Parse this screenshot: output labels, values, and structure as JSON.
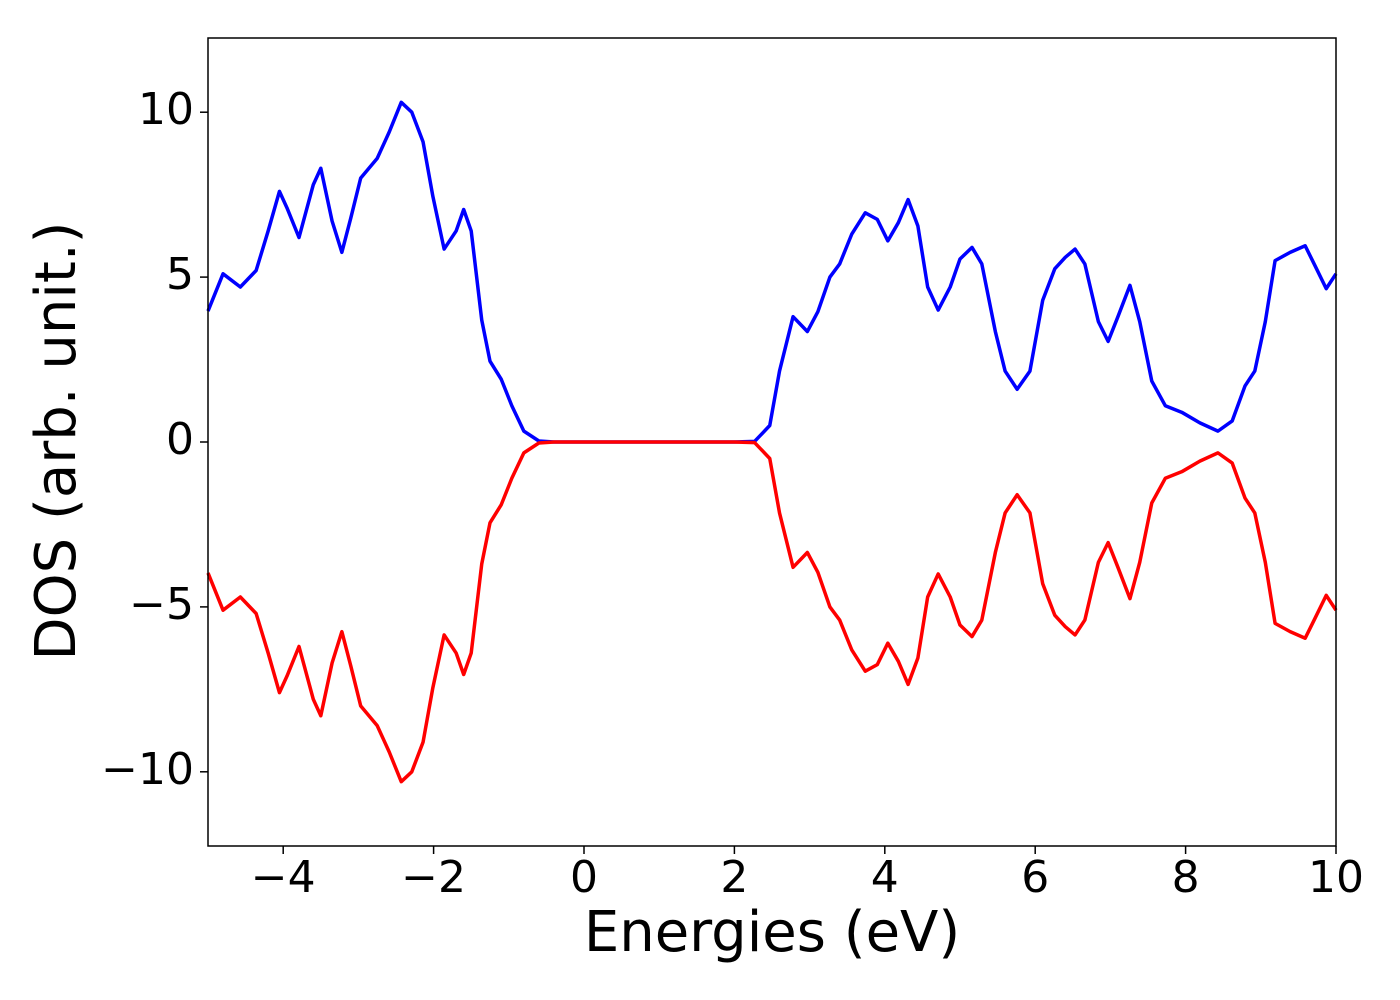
{
  "chart_data": {
    "type": "line",
    "xlabel": "Energies (eV)",
    "ylabel": "DOS (arb. unit.)",
    "xlim": [
      -5,
      10
    ],
    "ylim": [
      -12.25,
      12.25
    ],
    "xticks": [
      {
        "value": -4,
        "label": "−4"
      },
      {
        "value": -2,
        "label": "−2"
      },
      0,
      2,
      4,
      6,
      8,
      10
    ],
    "yticks": [
      {
        "value": -10,
        "label": "−10"
      },
      {
        "value": -5,
        "label": "−5"
      },
      0,
      5,
      10
    ],
    "grid": false,
    "x": [
      -5,
      -4.8,
      -4.57,
      -4.36,
      -4.2,
      -4.05,
      -3.95,
      -3.79,
      -3.6,
      -3.5,
      -3.35,
      -3.22,
      -3.1,
      -2.97,
      -2.75,
      -2.59,
      -2.43,
      -2.29,
      -2.14,
      -2.01,
      -1.86,
      -1.7,
      -1.6,
      -1.5,
      -1.36,
      -1.25,
      -1.1,
      -0.96,
      -0.8,
      -0.6,
      -0.4,
      0,
      1,
      2,
      2.27,
      2.47,
      2.6,
      2.78,
      2.97,
      3.11,
      3.27,
      3.4,
      3.56,
      3.74,
      3.9,
      4.04,
      4.18,
      4.31,
      4.44,
      4.57,
      4.71,
      4.87,
      5.0,
      5.16,
      5.29,
      5.47,
      5.6,
      5.76,
      5.93,
      6.1,
      6.26,
      6.4,
      6.53,
      6.66,
      6.84,
      6.97,
      7.1,
      7.26,
      7.39,
      7.55,
      7.73,
      7.95,
      8.19,
      8.43,
      8.62,
      8.79,
      8.92,
      9.06,
      9.19,
      9.39,
      9.59,
      9.72,
      9.87,
      10
    ],
    "series": [
      {
        "color": "#0000ff",
        "values": [
          3.97,
          5.1,
          4.7,
          5.2,
          6.4,
          7.6,
          7.1,
          6.2,
          7.8,
          8.3,
          6.7,
          5.75,
          6.8,
          8.0,
          8.6,
          9.4,
          10.3,
          10.0,
          9.1,
          7.45,
          5.85,
          6.4,
          7.05,
          6.4,
          3.7,
          2.45,
          1.9,
          1.1,
          0.33,
          0.03,
          0,
          0,
          0,
          0,
          0.02,
          0.5,
          2.15,
          3.8,
          3.35,
          3.95,
          5.0,
          5.4,
          6.3,
          6.95,
          6.75,
          6.1,
          6.65,
          7.35,
          6.55,
          4.7,
          4.0,
          4.7,
          5.55,
          5.9,
          5.4,
          3.35,
          2.15,
          1.6,
          2.15,
          4.3,
          5.25,
          5.6,
          5.85,
          5.4,
          3.65,
          3.05,
          3.8,
          4.75,
          3.65,
          1.85,
          1.1,
          0.9,
          0.58,
          0.33,
          0.64,
          1.7,
          2.15,
          3.65,
          5.5,
          5.75,
          5.95,
          5.35,
          4.65,
          5.1
        ]
      },
      {
        "color": "#ff0000",
        "values": [
          -3.97,
          -5.1,
          -4.7,
          -5.2,
          -6.4,
          -7.6,
          -7.1,
          -6.2,
          -7.8,
          -8.3,
          -6.7,
          -5.75,
          -6.8,
          -8.0,
          -8.6,
          -9.4,
          -10.3,
          -10.0,
          -9.1,
          -7.45,
          -5.85,
          -6.4,
          -7.05,
          -6.4,
          -3.7,
          -2.45,
          -1.9,
          -1.1,
          -0.33,
          -0.03,
          0,
          0,
          0,
          0,
          -0.02,
          -0.5,
          -2.15,
          -3.8,
          -3.35,
          -3.95,
          -5.0,
          -5.4,
          -6.3,
          -6.95,
          -6.75,
          -6.1,
          -6.65,
          -7.35,
          -6.55,
          -4.7,
          -4.0,
          -4.7,
          -5.55,
          -5.9,
          -5.4,
          -3.35,
          -2.15,
          -1.6,
          -2.15,
          -4.3,
          -5.25,
          -5.6,
          -5.85,
          -5.4,
          -3.65,
          -3.05,
          -3.8,
          -4.75,
          -3.65,
          -1.85,
          -1.1,
          -0.9,
          -0.58,
          -0.33,
          -0.64,
          -1.7,
          -2.15,
          -3.65,
          -5.5,
          -5.75,
          -5.95,
          -5.35,
          -4.65,
          -5.1
        ]
      }
    ]
  }
}
